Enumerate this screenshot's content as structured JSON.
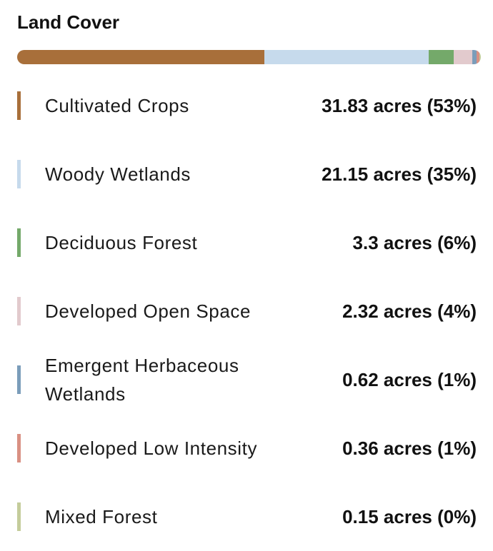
{
  "chart_data": {
    "type": "bar",
    "title": "Land Cover",
    "unit": "acres",
    "categories": [
      "Cultivated Crops",
      "Woody Wetlands",
      "Deciduous Forest",
      "Developed Open Space",
      "Emergent Herbaceous Wetlands",
      "Developed Low Intensity",
      "Mixed Forest"
    ],
    "values": [
      31.83,
      21.15,
      3.3,
      2.32,
      0.62,
      0.36,
      0.15
    ],
    "percents": [
      53,
      35,
      6,
      4,
      1,
      1,
      0
    ],
    "value_labels": [
      "31.83 acres (53%)",
      "21.15 acres (35%)",
      "3.3 acres (6%)",
      "2.32 acres (4%)",
      "0.62 acres (1%)",
      "0.36 acres (1%)",
      "0.15 acres (0%)"
    ],
    "colors": [
      "#a86f3a",
      "#c6daec",
      "#74a96a",
      "#e2cacd",
      "#7b9dba",
      "#d99083",
      "#c4cc9b"
    ]
  }
}
